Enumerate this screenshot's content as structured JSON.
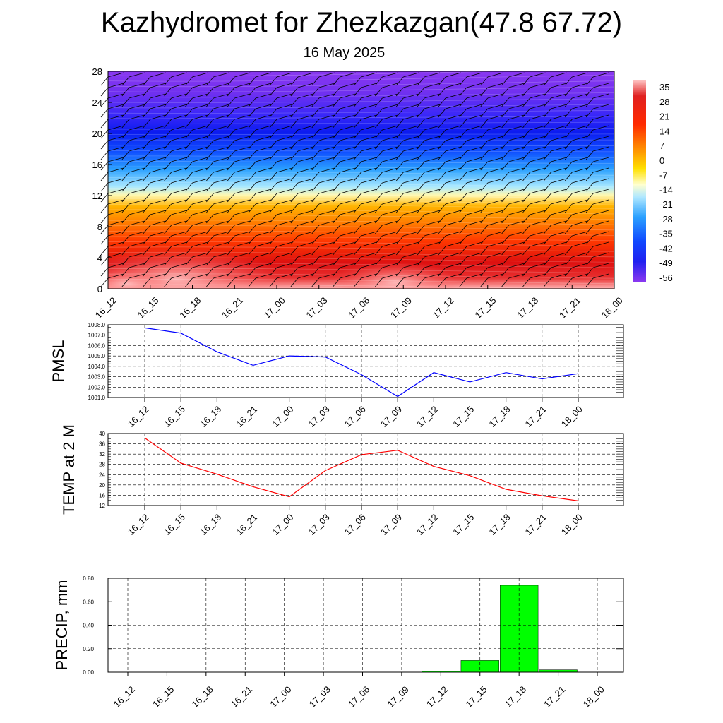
{
  "title": "Kazhydromet for Zhezkazgan(47.8 67.72)",
  "subtitle": "16 May 2025",
  "time_labels": [
    "16_12",
    "16_15",
    "16_18",
    "16_21",
    "17_00",
    "17_03",
    "17_06",
    "17_09",
    "17_12",
    "17_15",
    "17_18",
    "17_21",
    "18_00"
  ],
  "chart_data": [
    {
      "type": "heatmap",
      "name": "temperature-cross-section",
      "y_ticks": [
        "0",
        "4",
        "8",
        "12",
        "16",
        "20",
        "24",
        "28"
      ],
      "ylim": [
        0,
        28
      ],
      "colorbar_labels": [
        "35",
        "28",
        "21",
        "14",
        "7",
        "0",
        "-7",
        "-14",
        "-21",
        "-28",
        "-35",
        "-42",
        "-49",
        "-56"
      ],
      "colorbar_range": [
        -63,
        42
      ],
      "wind_barbs": true
    },
    {
      "type": "line",
      "ylabel": "PMSL",
      "y_ticks": [
        "1001.0",
        "1002.0",
        "1003.0",
        "1004.0",
        "1005.0",
        "1006.0",
        "1007.0",
        "1008.0"
      ],
      "ylim": [
        1001.0,
        1008.0
      ],
      "values": [
        1007.7,
        1007.2,
        1005.4,
        1004.1,
        1005.0,
        1004.9,
        1003.2,
        1001.1,
        1003.4,
        1002.5,
        1003.4,
        1002.8,
        1003.3
      ],
      "color": "#0000ff"
    },
    {
      "type": "line",
      "ylabel": "TEMP at 2 M",
      "y_ticks": [
        "12",
        "16",
        "20",
        "24",
        "28",
        "32",
        "36",
        "40"
      ],
      "ylim": [
        12,
        40
      ],
      "values": [
        38.3,
        28.5,
        24.2,
        19.3,
        15.4,
        25.6,
        31.8,
        33.5,
        27.2,
        23.6,
        18.3,
        15.8,
        13.8
      ],
      "color": "#ff0000"
    },
    {
      "type": "bar",
      "ylabel": "PRECIP, mm",
      "y_ticks": [
        "0.00",
        "0.20",
        "0.40",
        "0.60",
        "0.80"
      ],
      "ylim": [
        0,
        0.8
      ],
      "values": [
        0,
        0,
        0,
        0,
        0,
        0,
        0,
        0,
        0.01,
        0.1,
        0.74,
        0.02,
        0
      ],
      "color": "#00ff00"
    }
  ]
}
